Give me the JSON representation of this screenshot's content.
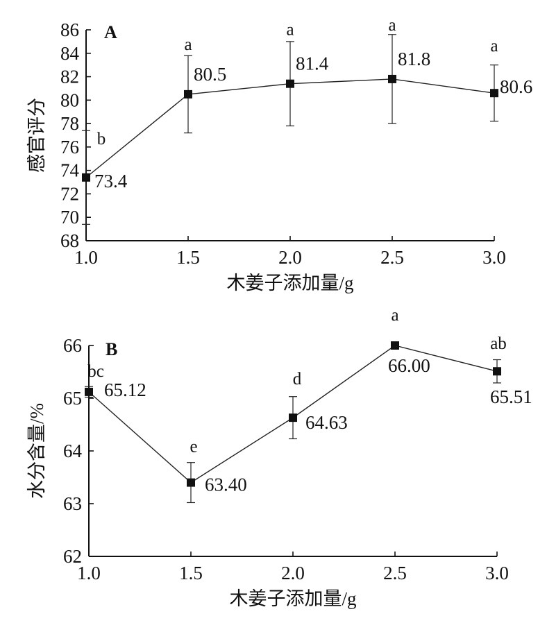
{
  "chart_data": [
    {
      "type": "line",
      "panel_label": "A",
      "xlabel": "木姜子添加量/g",
      "ylabel": "感官评分",
      "xlim": [
        1.0,
        3.0
      ],
      "ylim": [
        68,
        86
      ],
      "x_ticks": [
        "1.0",
        "1.5",
        "2.0",
        "2.5",
        "3.0"
      ],
      "y_ticks": [
        "68",
        "70",
        "72",
        "74",
        "76",
        "78",
        "80",
        "82",
        "84",
        "86"
      ],
      "grid": false,
      "series": [
        {
          "x": [
            1.0,
            1.5,
            2.0,
            2.5,
            3.0
          ],
          "values": [
            73.4,
            80.5,
            81.4,
            81.8,
            80.6
          ],
          "error": [
            4.0,
            3.3,
            3.6,
            3.8,
            2.4
          ],
          "labels": [
            "73.4",
            "80.5",
            "81.4",
            "81.8",
            "80.6"
          ],
          "significance": [
            "b",
            "a",
            "a",
            "a",
            "a"
          ]
        }
      ]
    },
    {
      "type": "line",
      "panel_label": "B",
      "xlabel": "木姜子添加量/g",
      "ylabel": "水分含量/%",
      "xlim": [
        1.0,
        3.0
      ],
      "ylim": [
        62,
        66
      ],
      "x_ticks": [
        "1.0",
        "1.5",
        "2.0",
        "2.5",
        "3.0"
      ],
      "y_ticks": [
        "62",
        "63",
        "64",
        "65",
        "66"
      ],
      "grid": false,
      "series": [
        {
          "x": [
            1.0,
            1.5,
            2.0,
            2.5,
            3.0
          ],
          "values": [
            65.12,
            63.4,
            64.63,
            66.0,
            65.51
          ],
          "error": [
            0.1,
            0.38,
            0.4,
            0.06,
            0.22
          ],
          "labels": [
            "65.12",
            "63.40",
            "64.63",
            "66.00",
            "65.51"
          ],
          "significance": [
            "bc",
            "e",
            "d",
            "a",
            "ab"
          ]
        }
      ]
    }
  ]
}
